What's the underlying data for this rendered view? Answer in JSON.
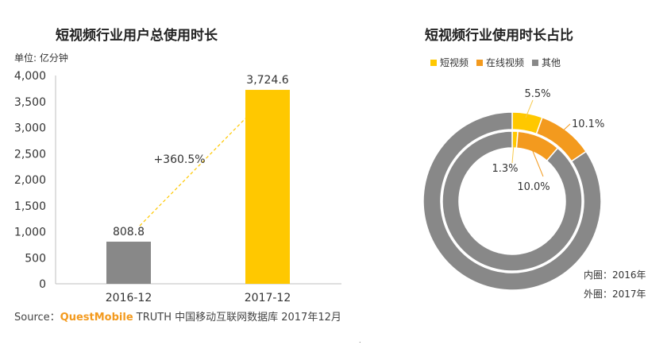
{
  "colors": {
    "yellow": "#ffc800",
    "orange": "#f39a1e",
    "gray": "#888888",
    "axis": "#bfbfbf",
    "trend": "#ffc800"
  },
  "chart_data": [
    {
      "type": "bar",
      "title": "短视频行业用户总使用时长",
      "ylabel": "单位: 亿分钟",
      "xlabel": "",
      "categories": [
        "2016-12",
        "2017-12"
      ],
      "values": [
        808.8,
        3724.6
      ],
      "value_labels": [
        "808.8",
        "3,724.6"
      ],
      "bar_colors": [
        "#888888",
        "#ffc800"
      ],
      "ylim": [
        0,
        4000
      ],
      "yticks": [
        0,
        500,
        1000,
        1500,
        2000,
        2500,
        3000,
        3500,
        4000
      ],
      "ytick_labels": [
        "0",
        "500",
        "1,000",
        "1,500",
        "2,000",
        "2,500",
        "3,000",
        "3,500",
        "4,000"
      ],
      "grid": false,
      "annotation": "+360.5%"
    },
    {
      "type": "pie",
      "title": "短视频行业使用时长占比",
      "legend": [
        "短视频",
        "在线视频",
        "其他"
      ],
      "legend_placement": "top",
      "rings": [
        {
          "name": "外圈",
          "year": "2017年",
          "slices": [
            {
              "label": "短视频",
              "value": 5.5,
              "display": "5.5%"
            },
            {
              "label": "在线视频",
              "value": 10.1,
              "display": "10.1%"
            },
            {
              "label": "其他",
              "value": 84.4,
              "display": ""
            }
          ]
        },
        {
          "name": "内圈",
          "year": "2016年",
          "slices": [
            {
              "label": "短视频",
              "value": 1.3,
              "display": "1.3%"
            },
            {
              "label": "在线视频",
              "value": 10.0,
              "display": "10.0%"
            },
            {
              "label": "其他",
              "value": 88.7,
              "display": ""
            }
          ]
        }
      ],
      "notes": [
        "内圈：2016年",
        "外圈：2017年"
      ]
    }
  ],
  "source": {
    "prefix": "Source：",
    "brand": "QuestMobile",
    "rest": " TRUTH 中国移动互联网数据库 2017年12月"
  },
  "footer_mark": "."
}
